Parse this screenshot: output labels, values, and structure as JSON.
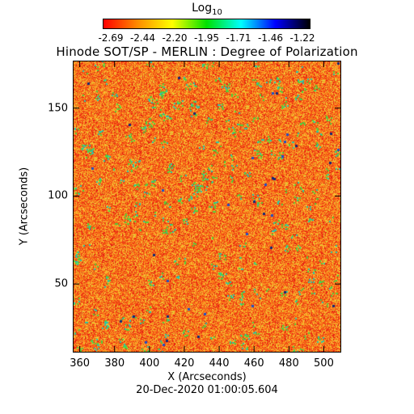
{
  "colorbar": {
    "title": "Log",
    "title_sub": "10",
    "ticks": [
      "-2.69",
      "-2.44",
      "-2.20",
      "-1.95",
      "-1.71",
      "-1.46",
      "-1.22"
    ],
    "colors": [
      "#ff0000",
      "#ff8c00",
      "#ffff00",
      "#00e000",
      "#00ffff",
      "#0000ff",
      "#000000"
    ]
  },
  "title": "Hinode SOT/SP - MERLIN : Degree of Polarization",
  "xlabel": "X (Arcseconds)",
  "ylabel": "Y (Arcseconds)",
  "timestamp": "20-Dec-2020 01:00:05.604",
  "chart_data": {
    "type": "heatmap",
    "title": "Hinode SOT/SP - MERLIN : Degree of Polarization",
    "xlabel": "X (Arcseconds)",
    "ylabel": "Y (Arcseconds)",
    "xlim": [
      356,
      510
    ],
    "ylim": [
      11,
      177
    ],
    "xticks": [
      360,
      380,
      400,
      420,
      440,
      460,
      480,
      500
    ],
    "yticks": [
      50,
      100,
      150
    ],
    "colorscale_label": "Log10 Degree of Polarization",
    "zlim": [
      -2.69,
      -1.22
    ]
  }
}
